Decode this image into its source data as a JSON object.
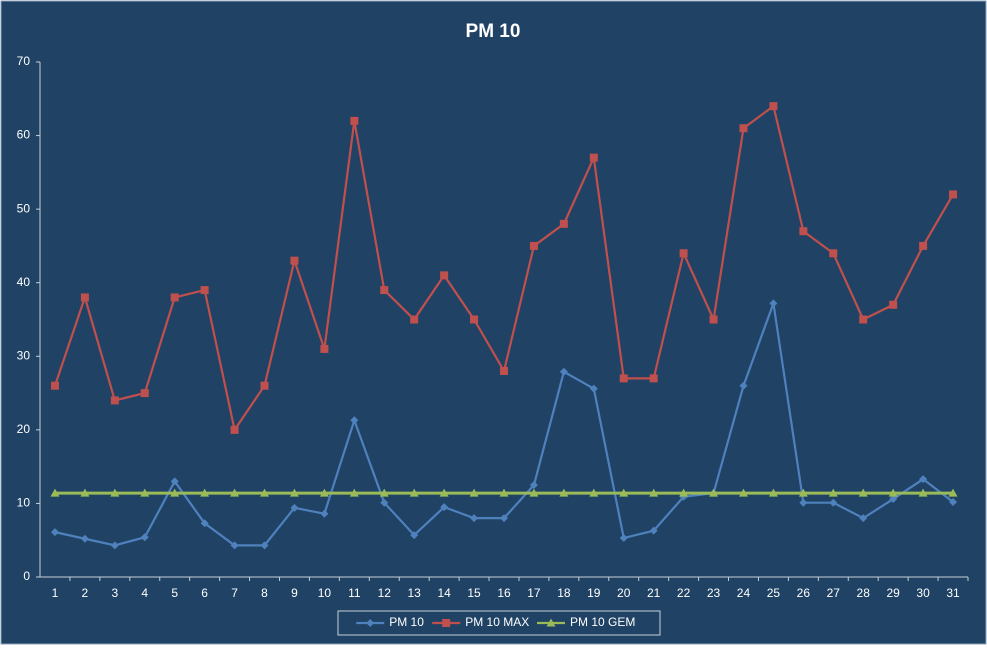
{
  "chart_data": {
    "type": "line",
    "title": "PM 10",
    "categories": [
      "1",
      "2",
      "3",
      "4",
      "5",
      "6",
      "7",
      "8",
      "9",
      "10",
      "11",
      "12",
      "13",
      "14",
      "15",
      "16",
      "17",
      "18",
      "19",
      "20",
      "21",
      "22",
      "23",
      "24",
      "25",
      "26",
      "27",
      "28",
      "29",
      "30",
      "31"
    ],
    "series": [
      {
        "name": "PM 10",
        "color": "#4f81bd",
        "marker": "diamond",
        "values": [
          6.1,
          5.2,
          4.3,
          5.4,
          13.0,
          7.3,
          4.3,
          4.3,
          9.4,
          8.6,
          21.3,
          10.1,
          5.7,
          9.5,
          8.0,
          8.0,
          12.5,
          27.9,
          25.6,
          5.3,
          6.3,
          10.9,
          11.4,
          26.0,
          37.2,
          10.1,
          10.1,
          8.0,
          10.6,
          13.3,
          10.2
        ]
      },
      {
        "name": "PM 10 MAX",
        "color": "#c0504d",
        "marker": "square",
        "values": [
          26,
          38,
          24,
          25,
          38,
          39,
          20,
          26,
          43,
          31,
          62,
          39,
          35,
          41,
          35,
          28,
          45,
          48,
          57,
          27,
          27,
          44,
          35,
          61,
          64,
          47,
          44,
          35,
          37,
          45,
          52
        ]
      },
      {
        "name": "PM 10 GEM",
        "color": "#9bbb59",
        "marker": "triangle",
        "values": [
          11.4,
          11.4,
          11.4,
          11.4,
          11.4,
          11.4,
          11.4,
          11.4,
          11.4,
          11.4,
          11.4,
          11.4,
          11.4,
          11.4,
          11.4,
          11.4,
          11.4,
          11.4,
          11.4,
          11.4,
          11.4,
          11.4,
          11.4,
          11.4,
          11.4,
          11.4,
          11.4,
          11.4,
          11.4,
          11.4,
          11.4
        ]
      }
    ],
    "ylim": [
      0,
      70
    ],
    "yticks": [
      0,
      10,
      20,
      30,
      40,
      50,
      60,
      70
    ],
    "grid": false,
    "legend": "bottom"
  }
}
